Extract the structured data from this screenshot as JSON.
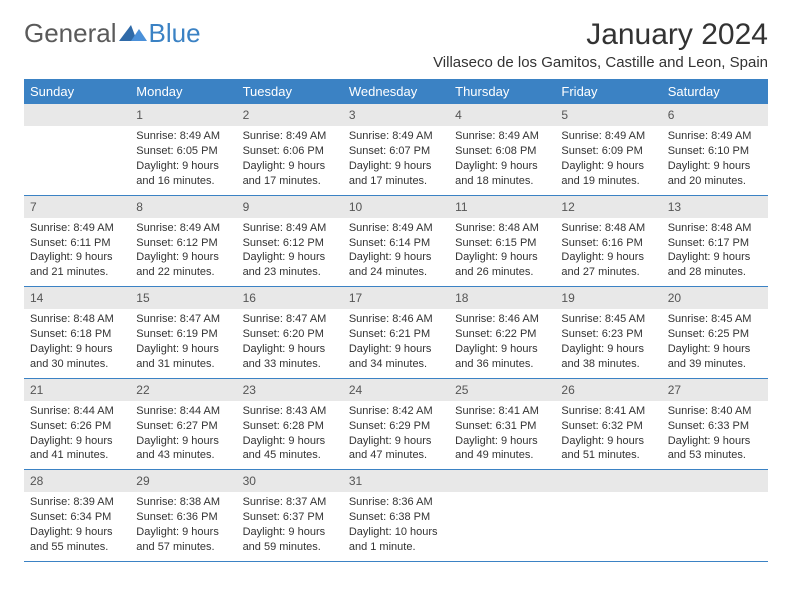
{
  "brand": {
    "name1": "General",
    "name2": "Blue"
  },
  "title": "January 2024",
  "location": "Villaseco de los Gamitos, Castille and Leon, Spain",
  "colors": {
    "header_bg": "#3b82c4",
    "header_fg": "#ffffff",
    "daynum_bg": "#e8e8e8",
    "daynum_fg": "#555555",
    "text": "#333333",
    "row_border": "#3b82c4",
    "page_bg": "#ffffff"
  },
  "fonts": {
    "title_pt": 30,
    "location_pt": 15,
    "header_pt": 13,
    "cell_pt": 11,
    "daynum_pt": 12
  },
  "days_of_week": [
    "Sunday",
    "Monday",
    "Tuesday",
    "Wednesday",
    "Thursday",
    "Friday",
    "Saturday"
  ],
  "weeks": [
    {
      "nums": [
        "",
        "1",
        "2",
        "3",
        "4",
        "5",
        "6"
      ],
      "cells": [
        [],
        [
          "Sunrise: 8:49 AM",
          "Sunset: 6:05 PM",
          "Daylight: 9 hours",
          "and 16 minutes."
        ],
        [
          "Sunrise: 8:49 AM",
          "Sunset: 6:06 PM",
          "Daylight: 9 hours",
          "and 17 minutes."
        ],
        [
          "Sunrise: 8:49 AM",
          "Sunset: 6:07 PM",
          "Daylight: 9 hours",
          "and 17 minutes."
        ],
        [
          "Sunrise: 8:49 AM",
          "Sunset: 6:08 PM",
          "Daylight: 9 hours",
          "and 18 minutes."
        ],
        [
          "Sunrise: 8:49 AM",
          "Sunset: 6:09 PM",
          "Daylight: 9 hours",
          "and 19 minutes."
        ],
        [
          "Sunrise: 8:49 AM",
          "Sunset: 6:10 PM",
          "Daylight: 9 hours",
          "and 20 minutes."
        ]
      ]
    },
    {
      "nums": [
        "7",
        "8",
        "9",
        "10",
        "11",
        "12",
        "13"
      ],
      "cells": [
        [
          "Sunrise: 8:49 AM",
          "Sunset: 6:11 PM",
          "Daylight: 9 hours",
          "and 21 minutes."
        ],
        [
          "Sunrise: 8:49 AM",
          "Sunset: 6:12 PM",
          "Daylight: 9 hours",
          "and 22 minutes."
        ],
        [
          "Sunrise: 8:49 AM",
          "Sunset: 6:12 PM",
          "Daylight: 9 hours",
          "and 23 minutes."
        ],
        [
          "Sunrise: 8:49 AM",
          "Sunset: 6:14 PM",
          "Daylight: 9 hours",
          "and 24 minutes."
        ],
        [
          "Sunrise: 8:48 AM",
          "Sunset: 6:15 PM",
          "Daylight: 9 hours",
          "and 26 minutes."
        ],
        [
          "Sunrise: 8:48 AM",
          "Sunset: 6:16 PM",
          "Daylight: 9 hours",
          "and 27 minutes."
        ],
        [
          "Sunrise: 8:48 AM",
          "Sunset: 6:17 PM",
          "Daylight: 9 hours",
          "and 28 minutes."
        ]
      ]
    },
    {
      "nums": [
        "14",
        "15",
        "16",
        "17",
        "18",
        "19",
        "20"
      ],
      "cells": [
        [
          "Sunrise: 8:48 AM",
          "Sunset: 6:18 PM",
          "Daylight: 9 hours",
          "and 30 minutes."
        ],
        [
          "Sunrise: 8:47 AM",
          "Sunset: 6:19 PM",
          "Daylight: 9 hours",
          "and 31 minutes."
        ],
        [
          "Sunrise: 8:47 AM",
          "Sunset: 6:20 PM",
          "Daylight: 9 hours",
          "and 33 minutes."
        ],
        [
          "Sunrise: 8:46 AM",
          "Sunset: 6:21 PM",
          "Daylight: 9 hours",
          "and 34 minutes."
        ],
        [
          "Sunrise: 8:46 AM",
          "Sunset: 6:22 PM",
          "Daylight: 9 hours",
          "and 36 minutes."
        ],
        [
          "Sunrise: 8:45 AM",
          "Sunset: 6:23 PM",
          "Daylight: 9 hours",
          "and 38 minutes."
        ],
        [
          "Sunrise: 8:45 AM",
          "Sunset: 6:25 PM",
          "Daylight: 9 hours",
          "and 39 minutes."
        ]
      ]
    },
    {
      "nums": [
        "21",
        "22",
        "23",
        "24",
        "25",
        "26",
        "27"
      ],
      "cells": [
        [
          "Sunrise: 8:44 AM",
          "Sunset: 6:26 PM",
          "Daylight: 9 hours",
          "and 41 minutes."
        ],
        [
          "Sunrise: 8:44 AM",
          "Sunset: 6:27 PM",
          "Daylight: 9 hours",
          "and 43 minutes."
        ],
        [
          "Sunrise: 8:43 AM",
          "Sunset: 6:28 PM",
          "Daylight: 9 hours",
          "and 45 minutes."
        ],
        [
          "Sunrise: 8:42 AM",
          "Sunset: 6:29 PM",
          "Daylight: 9 hours",
          "and 47 minutes."
        ],
        [
          "Sunrise: 8:41 AM",
          "Sunset: 6:31 PM",
          "Daylight: 9 hours",
          "and 49 minutes."
        ],
        [
          "Sunrise: 8:41 AM",
          "Sunset: 6:32 PM",
          "Daylight: 9 hours",
          "and 51 minutes."
        ],
        [
          "Sunrise: 8:40 AM",
          "Sunset: 6:33 PM",
          "Daylight: 9 hours",
          "and 53 minutes."
        ]
      ]
    },
    {
      "nums": [
        "28",
        "29",
        "30",
        "31",
        "",
        "",
        ""
      ],
      "cells": [
        [
          "Sunrise: 8:39 AM",
          "Sunset: 6:34 PM",
          "Daylight: 9 hours",
          "and 55 minutes."
        ],
        [
          "Sunrise: 8:38 AM",
          "Sunset: 6:36 PM",
          "Daylight: 9 hours",
          "and 57 minutes."
        ],
        [
          "Sunrise: 8:37 AM",
          "Sunset: 6:37 PM",
          "Daylight: 9 hours",
          "and 59 minutes."
        ],
        [
          "Sunrise: 8:36 AM",
          "Sunset: 6:38 PM",
          "Daylight: 10 hours",
          "and 1 minute."
        ],
        [],
        [],
        []
      ]
    }
  ]
}
